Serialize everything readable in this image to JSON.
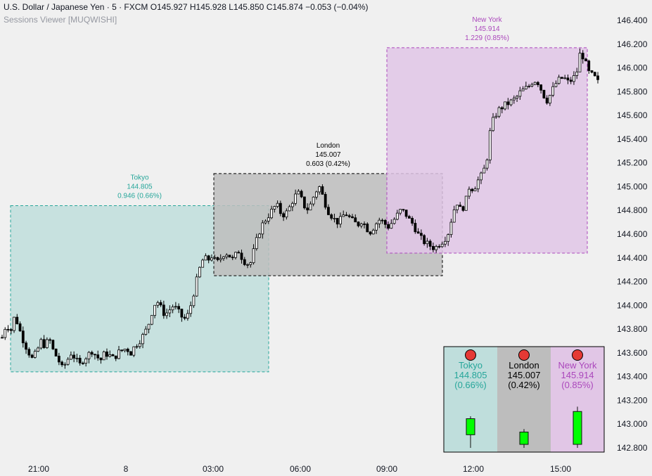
{
  "header": {
    "symbol": "U.S. Dollar / Japanese Yen · 5 · FXCM",
    "o_label": "O",
    "o_value": "145.927",
    "h_label": "H",
    "h_value": "145.928",
    "l_label": "L",
    "l_value": "145.850",
    "c_label": "C",
    "c_value": "145.874",
    "change": "−0.053 (−0.04%)",
    "indicator": "Sessions Viewer [MUQWISHI]"
  },
  "chart_data": {
    "type": "candlestick",
    "symbol": "USDJPY",
    "timeframe": "5",
    "ylim": [
      142.7,
      146.44
    ],
    "y_ticks": [
      "146.400",
      "146.200",
      "146.000",
      "145.800",
      "145.600",
      "145.400",
      "145.200",
      "145.000",
      "144.800",
      "144.600",
      "144.400",
      "144.200",
      "144.000",
      "143.800",
      "143.600",
      "143.400",
      "143.200",
      "143.000",
      "142.800"
    ],
    "x_ticks": [
      "21:00",
      "8",
      "03:00",
      "06:00",
      "09:00",
      "12:00",
      "15:00"
    ],
    "price_path": [
      [
        143.73,
        143.85,
        143.78,
        143.92,
        143.8,
        143.7,
        143.62,
        143.55,
        143.6,
        143.7
      ],
      [
        143.66,
        143.72,
        143.61,
        143.55,
        143.47,
        143.52,
        143.6,
        143.56,
        143.49,
        143.55
      ],
      [
        143.58,
        143.62,
        143.57,
        143.54,
        143.6,
        143.58,
        143.55,
        143.6,
        143.62,
        143.64
      ],
      [
        143.6,
        143.66,
        143.7,
        143.75,
        143.82,
        143.95,
        144.05,
        143.98,
        143.92,
        143.96
      ],
      [
        144.0,
        143.95,
        143.9,
        143.88,
        144.0,
        144.15,
        144.3,
        144.4,
        144.38,
        144.42
      ],
      [
        144.35,
        144.4,
        144.45,
        144.42,
        144.38,
        144.47,
        144.4,
        144.35,
        144.36,
        144.5
      ],
      [
        144.62,
        144.7,
        144.75,
        144.8,
        144.85,
        144.78,
        144.76,
        144.82,
        144.9,
        144.95
      ],
      [
        144.88,
        144.8,
        144.85,
        144.95,
        145.0,
        144.9,
        144.8,
        144.75,
        144.7,
        144.72
      ],
      [
        144.78,
        144.74,
        144.7,
        144.68,
        144.72,
        144.65,
        144.62,
        144.68,
        144.72,
        144.7
      ],
      [
        144.66,
        144.7,
        144.75,
        144.8,
        144.78,
        144.72,
        144.68,
        144.6,
        144.55,
        144.52
      ],
      [
        144.5,
        144.48,
        144.52,
        144.55,
        144.6,
        144.75,
        144.88,
        144.8,
        144.85,
        145.0
      ],
      [
        144.98,
        145.05,
        145.1,
        145.2,
        145.5,
        145.6,
        145.65,
        145.68,
        145.7,
        145.72
      ],
      [
        145.75,
        145.8,
        145.82,
        145.85,
        145.9,
        145.88,
        145.8,
        145.72,
        145.78,
        145.86
      ],
      [
        145.9,
        145.92,
        145.88,
        145.9,
        145.95,
        146.15,
        146.05,
        145.95,
        145.93,
        145.88
      ]
    ],
    "sessions": [
      {
        "name": "Tokyo",
        "price": "144.805",
        "change": "0.946 (0.66%)",
        "color": "#26a69a",
        "fill": "#bfdedc"
      },
      {
        "name": "London",
        "price": "145.007",
        "change": "0.603 (0.42%)",
        "color": "#000000",
        "fill": "#bdbdbd"
      },
      {
        "name": "New York",
        "price": "145.914",
        "change": "1.229 (0.85%)",
        "color": "#ab47bc",
        "fill": "#e1c6e6"
      }
    ],
    "table": [
      {
        "name": "Tokyo",
        "price": "144.805",
        "pct": "(0.66%)",
        "color": "#26a69a",
        "fill": "#bfdedc",
        "status": "#e53935"
      },
      {
        "name": "London",
        "price": "145.007",
        "pct": "(0.42%)",
        "color": "#000000",
        "fill": "#bdbdbd",
        "status": "#e53935"
      },
      {
        "name": "New York",
        "price": "145.914",
        "pct": "(0.85%)",
        "color": "#ab47bc",
        "fill": "#e1c6e6",
        "status": "#e53935"
      }
    ],
    "candle_color_up": "#ffffff",
    "candle_color_down": "#000000",
    "mini_candle_color": "#00ff00",
    "grid": false
  }
}
